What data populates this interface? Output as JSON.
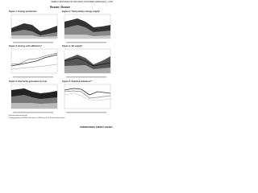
{
  "header": {
    "running_head": "ENERGY BALANCES OF NON-OECD COUNTRIES (2008 Edition) - II.397",
    "title": "Russia / Russie"
  },
  "figures": [
    {
      "title": "Figure 1. Energy production"
    },
    {
      "title": "Figure 2. Total primary energy supply*"
    },
    {
      "title": "Figure 3. Energy self-sufficiency*"
    },
    {
      "title": "Figure 4. Oil supply*"
    },
    {
      "title": "Figure 5. Electricity generation by fuel"
    },
    {
      "title": "Figure 6. Selected indicators**"
    }
  ],
  "footnotes": [
    "* Excludes electricity trade.",
    "** Energy production/TPES. Data prior to 1990 refer to the Former Soviet Union."
  ],
  "footer": "INTERNATIONAL ENERGY AGENCY"
}
